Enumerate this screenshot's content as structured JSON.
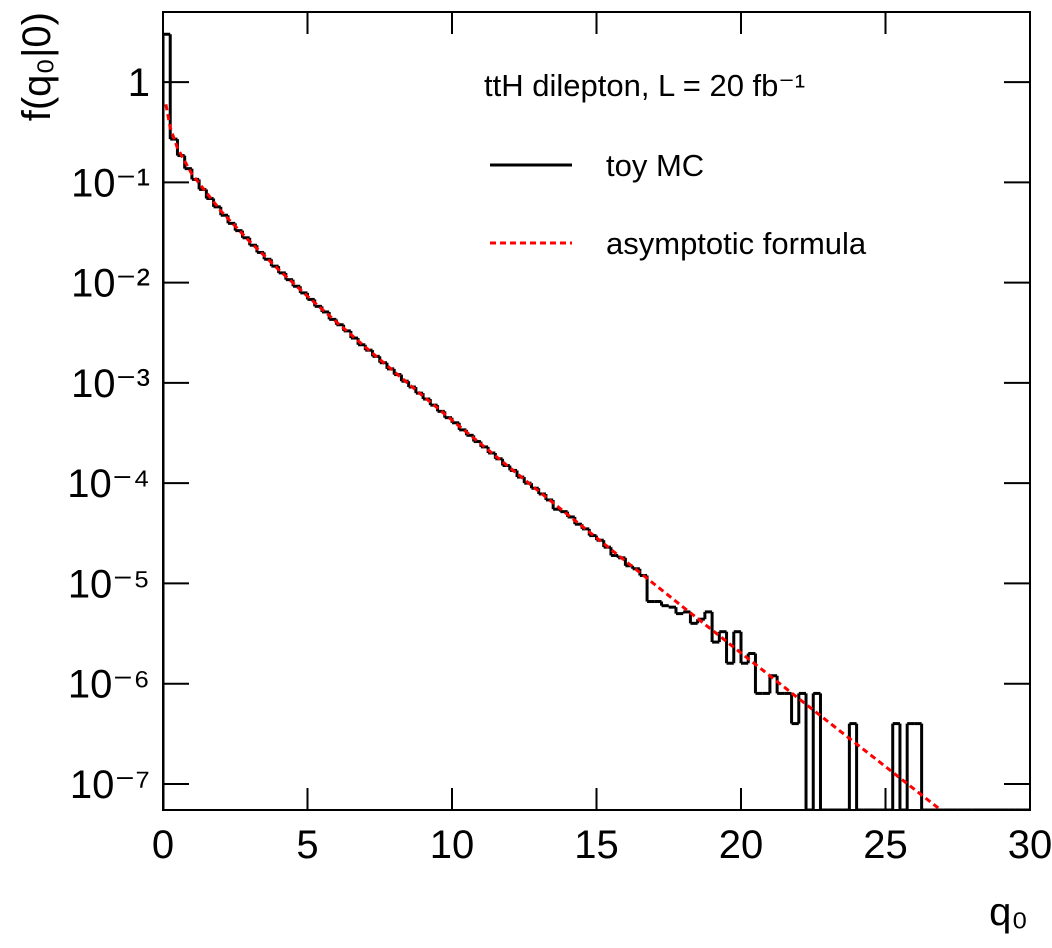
{
  "chart_data": {
    "type": "histogram",
    "annotation": "ttH dilepton, L = 20 fb⁻¹",
    "x_label": "q₀",
    "y_label": "f(q₀|0)",
    "log_y": true,
    "xlim": [
      0,
      30
    ],
    "xticks": [
      0,
      5,
      10,
      15,
      20,
      25,
      30
    ],
    "ylim": [
      5.5e-08,
      5
    ],
    "yticks": [
      {
        "value": 1,
        "label": "1"
      },
      {
        "value": 0.1,
        "label": "10⁻¹"
      },
      {
        "value": 0.01,
        "label": "10⁻²"
      },
      {
        "value": 0.001,
        "label": "10⁻³"
      },
      {
        "value": 0.0001,
        "label": "10⁻⁴"
      },
      {
        "value": 1e-05,
        "label": "10⁻⁵"
      },
      {
        "value": 1e-06,
        "label": "10⁻⁶"
      },
      {
        "value": 1e-07,
        "label": "10⁻⁷"
      }
    ],
    "bins": [
      0,
      0.25,
      0.5,
      0.75,
      1,
      1.25,
      1.5,
      1.75,
      2,
      2.25,
      2.5,
      2.75,
      3,
      3.25,
      3.5,
      3.75,
      4,
      4.25,
      4.5,
      4.75,
      5,
      5.25,
      5.5,
      5.75,
      6,
      6.25,
      6.5,
      6.75,
      7,
      7.25,
      7.5,
      7.75,
      8,
      8.25,
      8.5,
      8.75,
      9,
      9.25,
      9.5,
      9.75,
      10,
      10.25,
      10.5,
      10.75,
      11,
      11.25,
      11.5,
      11.75,
      12,
      12.25,
      12.5,
      12.75,
      13,
      13.25,
      13.5,
      13.75,
      14,
      14.25,
      14.5,
      14.75,
      15,
      15.25,
      15.5,
      15.75,
      16,
      16.25,
      16.5,
      16.75,
      17,
      17.25,
      17.5,
      17.75,
      18,
      18.25,
      18.5,
      18.75,
      19,
      19.25,
      19.5,
      19.75,
      20,
      20.25,
      20.5,
      20.75,
      21,
      21.25,
      21.5,
      21.75,
      22,
      22.25,
      22.5,
      22.75,
      23,
      23.25,
      23.5,
      23.75,
      24,
      24.25,
      24.5,
      24.75,
      25,
      25.25,
      25.5,
      25.75,
      26,
      26.25,
      26.5,
      26.75,
      27,
      27.25,
      27.5,
      27.75,
      28,
      28.25,
      28.5,
      28.75,
      29,
      29.25,
      29.5,
      29.75,
      30
    ],
    "series": [
      {
        "name": "toy MC",
        "type": "histogram",
        "color": "#000000",
        "values": [
          3.0,
          0.27,
          0.185,
          0.137,
          0.107,
          0.085,
          0.069,
          0.057,
          0.047,
          0.039,
          0.033,
          0.028,
          0.0236,
          0.02,
          0.0171,
          0.0146,
          0.0125,
          0.0107,
          0.0092,
          0.0079,
          0.0068,
          0.0058,
          0.0051,
          0.0043,
          0.0038,
          0.0033,
          0.0028,
          0.0024,
          0.00212,
          0.00184,
          0.00159,
          0.00138,
          0.00121,
          0.00104,
          0.00091,
          0.00079,
          0.00069,
          0.0006,
          0.00052,
          0.00045,
          0.0004,
          0.00034,
          0.0003,
          0.00026,
          0.00023,
          0.0002,
          0.000175,
          0.00015,
          0.000134,
          0.000115,
          0.0001,
          8.9e-05,
          7.8e-05,
          6.8e-05,
          5.5e-05,
          5.2e-05,
          4.6e-05,
          3.9e-05,
          3.5e-05,
          3e-05,
          2.7e-05,
          2.3e-05,
          1.9e-05,
          1.8e-05,
          1.5e-05,
          1.4e-05,
          1.2e-05,
          6.6e-06,
          6.6e-06,
          6e-06,
          5.8e-06,
          5e-06,
          5.2e-06,
          4e-06,
          4.4e-06,
          5.2e-06,
          2.6e-06,
          3.3e-06,
          1.6e-06,
          3.3e-06,
          1.6e-06,
          2e-06,
          8e-07,
          8e-07,
          1.2e-06,
          8e-07,
          8e-07,
          4e-07,
          8e-07,
          0,
          8e-07,
          0,
          0,
          0,
          0,
          4e-07,
          0,
          0,
          0,
          0,
          0,
          4e-07,
          0,
          4e-07,
          4e-07,
          0,
          0,
          0,
          0,
          0,
          0,
          0,
          0,
          0,
          0,
          0,
          0,
          0,
          0,
          0
        ]
      },
      {
        "name": "asymptotic formula",
        "type": "line",
        "color": "#ff0000",
        "dashed": true,
        "x": [
          0.1,
          0.25,
          0.5,
          1,
          2,
          3,
          4,
          5,
          6,
          7,
          8,
          9,
          10,
          11,
          12,
          13,
          14,
          15,
          16,
          17,
          18,
          19,
          20,
          21,
          22,
          23,
          24,
          25,
          26,
          27
        ],
        "values": [
          0.6,
          0.352,
          0.2197,
          0.121,
          0.0519,
          0.0257,
          0.0135,
          0.00731,
          0.004055,
          0.002277,
          0.001292,
          0.000739,
          0.000425,
          0.0002458,
          0.0001427,
          8.32e-05,
          4.86e-05,
          2.85e-05,
          1.673e-05,
          9.84e-06,
          5.8e-06,
          3.43e-06,
          2.025e-06,
          1.199e-06,
          7.1e-07,
          4.21e-07,
          2.502e-07,
          1.49e-07,
          8.84e-08,
          5.26e-08
        ]
      }
    ],
    "legend_position": "upper right"
  }
}
